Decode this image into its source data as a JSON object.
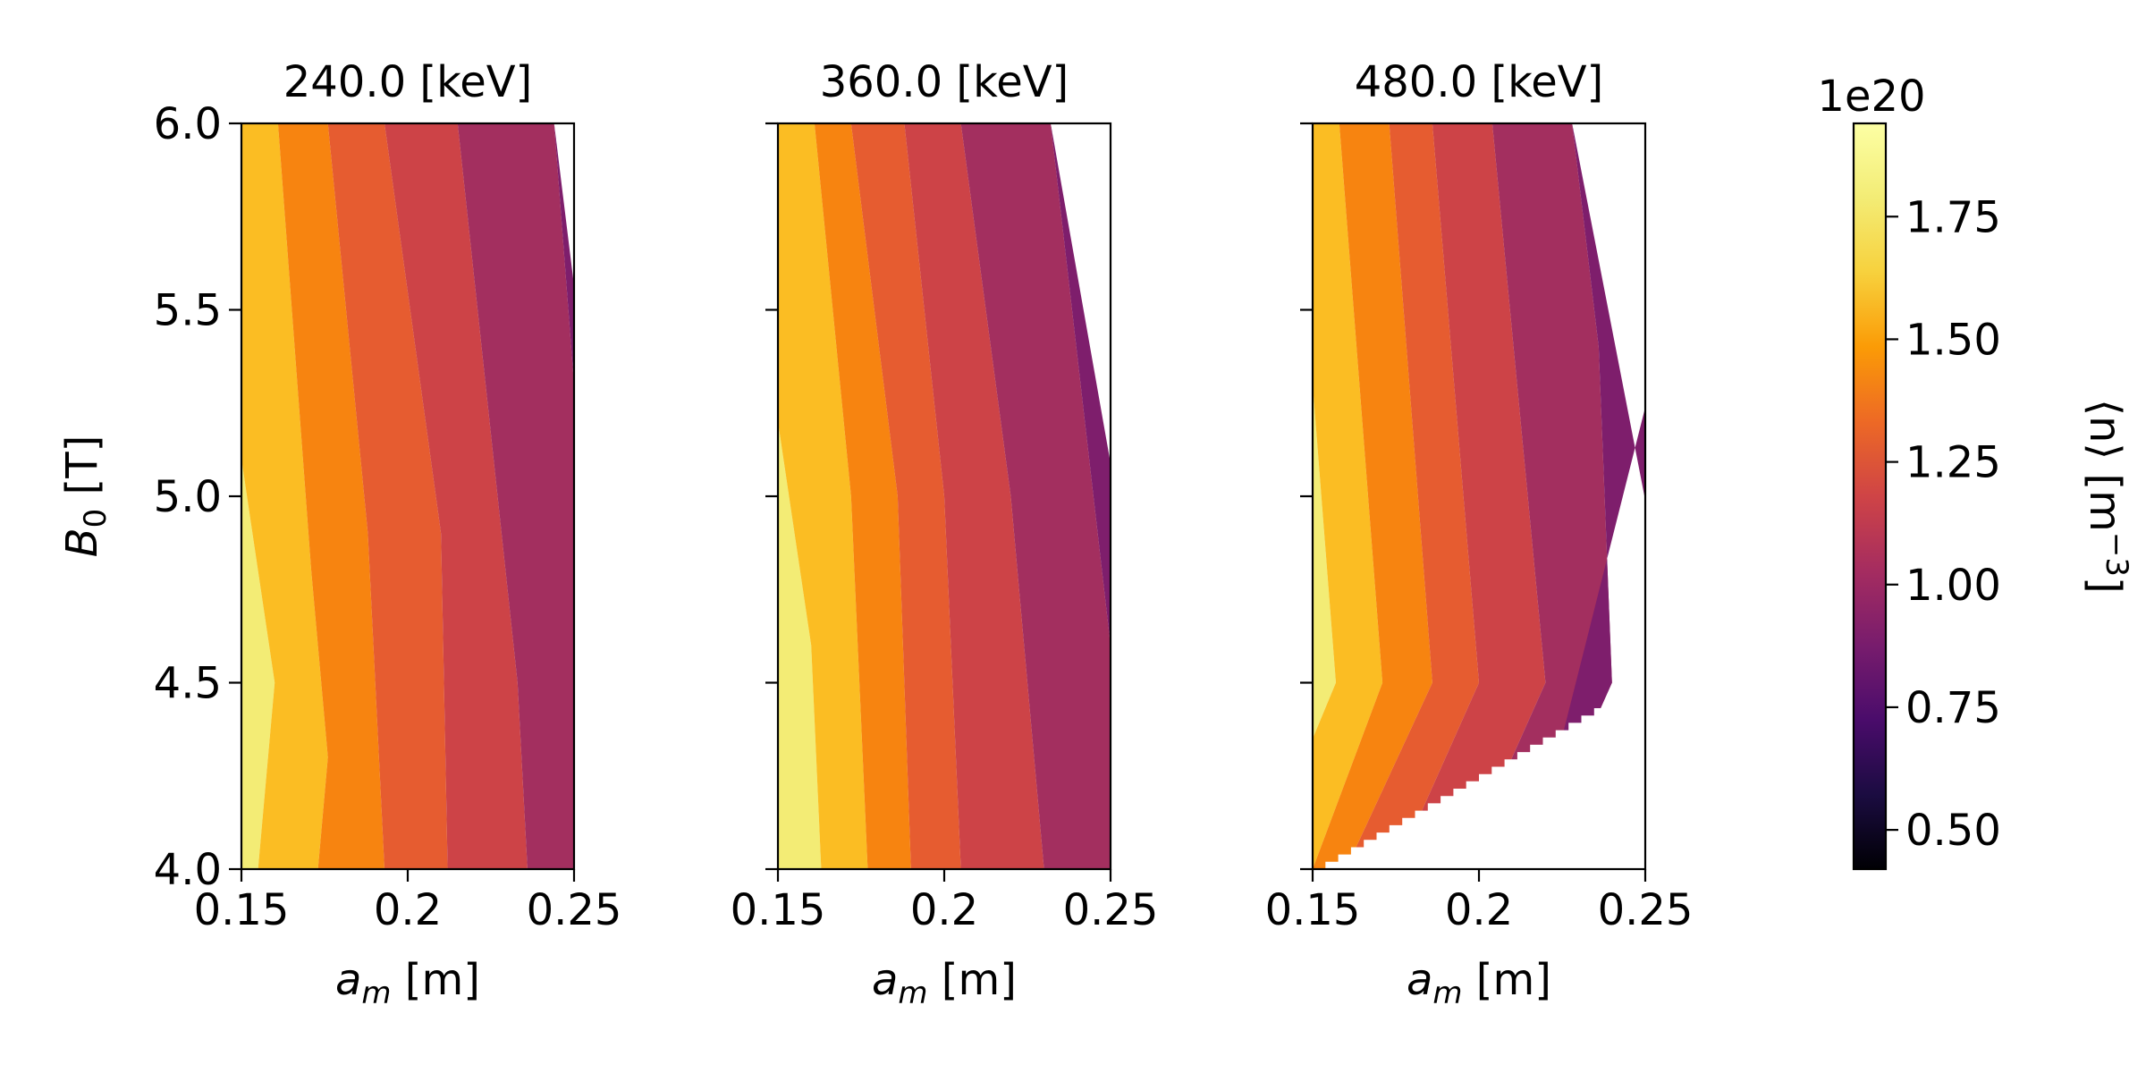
{
  "chart_data": {
    "type": "contour",
    "figure_colorbar": {
      "label": "⟨n⟩ [m",
      "label_sup": "−3",
      "label_end": "]",
      "multiplier": "1e20",
      "range": [
        0.42,
        1.94
      ],
      "ticks": [
        0.5,
        0.75,
        1.0,
        1.25,
        1.5,
        1.75
      ],
      "tick_labels": [
        "0.50",
        "0.75",
        "1.00",
        "1.25",
        "1.50",
        "1.75"
      ],
      "colormap": "inferno"
    },
    "x_axis": {
      "label_main": "a",
      "label_sub": "m",
      "label_unit": " [m]",
      "range": [
        0.15,
        0.25
      ],
      "ticks": [
        0.15,
        0.2,
        0.25
      ],
      "tick_labels": [
        "0.15",
        "0.2",
        "0.25"
      ]
    },
    "y_axis": {
      "label_main": "B",
      "label_sub": "0",
      "label_unit": " [T]",
      "range": [
        4.0,
        6.0
      ],
      "ticks": [
        4.0,
        4.5,
        5.0,
        5.5,
        6.0
      ],
      "tick_labels": [
        "4.0",
        "4.5",
        "5.0",
        "5.5",
        "6.0"
      ]
    },
    "panels": [
      {
        "title": "240.0 [keV]",
        "band_colors": [
          "#f3ec75",
          "#fbbd23",
          "#f78410",
          "#e65c30",
          "#cd4347",
          "#a32f5f",
          "#7e1e6c"
        ],
        "contours": [
          {
            "b0": [
              4.0,
              4.5,
              5.1,
              5.2,
              6.0
            ],
            "am": [
              0.155,
              0.16,
              0.15,
              0.15,
              0.15
            ]
          },
          {
            "b0": [
              4.0,
              4.3,
              4.8,
              6.0
            ],
            "am": [
              0.173,
              0.176,
              0.171,
              0.161
            ]
          },
          {
            "b0": [
              4.0,
              4.9,
              6.0
            ],
            "am": [
              0.193,
              0.188,
              0.176
            ]
          },
          {
            "b0": [
              4.0,
              4.9,
              6.0
            ],
            "am": [
              0.212,
              0.21,
              0.193
            ]
          },
          {
            "b0": [
              4.0,
              4.5,
              6.0
            ],
            "am": [
              0.236,
              0.233,
              0.215
            ]
          },
          {
            "b0": [
              4.0,
              5.3,
              6.0
            ],
            "am": [
              0.26,
              0.25,
              0.244
            ]
          }
        ]
      },
      {
        "title": "360.0 [keV]",
        "band_colors": [
          "#f3ec75",
          "#fbbd23",
          "#f78410",
          "#e65c30",
          "#cd4347",
          "#a32f5f",
          "#7e1e6c"
        ],
        "contours": [
          {
            "b0": [
              4.0,
              4.6,
              5.2,
              5.3,
              6.0
            ],
            "am": [
              0.163,
              0.16,
              0.15,
              0.15,
              0.15
            ]
          },
          {
            "b0": [
              4.0,
              5.0,
              6.0
            ],
            "am": [
              0.177,
              0.172,
              0.161
            ]
          },
          {
            "b0": [
              4.0,
              5.0,
              6.0
            ],
            "am": [
              0.19,
              0.186,
              0.172
            ]
          },
          {
            "b0": [
              4.0,
              5.0,
              6.0
            ],
            "am": [
              0.205,
              0.2,
              0.188
            ]
          },
          {
            "b0": [
              4.0,
              5.0,
              6.0
            ],
            "am": [
              0.23,
              0.22,
              0.205
            ]
          },
          {
            "b0": [
              4.0,
              4.6,
              6.0
            ],
            "am": [
              0.26,
              0.25,
              0.232
            ]
          }
        ]
      },
      {
        "title": "480.0 [keV]",
        "band_colors": [
          "#f3ec75",
          "#fbbd23",
          "#f78410",
          "#e65c30",
          "#cd4347",
          "#a32f5f",
          "#7e1e6c"
        ],
        "contours": [
          {
            "b0": [
              4.0,
              4.35,
              4.5,
              5.3,
              6.0
            ],
            "am": [
              0.15,
              0.15,
              0.157,
              0.15,
              0.15
            ]
          },
          {
            "b0": [
              4.0,
              4.5,
              6.0
            ],
            "am": [
              0.15,
              0.171,
              0.158
            ]
          },
          {
            "b0": [
              4.0,
              4.5,
              6.0
            ],
            "am": [
              0.16,
              0.186,
              0.173
            ]
          },
          {
            "b0": [
              4.0,
              4.5,
              6.0
            ],
            "am": [
              0.175,
              0.2,
              0.186
            ]
          },
          {
            "b0": [
              4.0,
              4.5,
              6.0
            ],
            "am": [
              0.195,
              0.22,
              0.204
            ]
          },
          {
            "b0": [
              4.0,
              4.5,
              5.4,
              6.0
            ],
            "am": [
              0.215,
              0.24,
              0.236,
              0.228
            ]
          }
        ],
        "valid_region_boundary": {
          "am": [
            0.15,
            0.25
          ],
          "b0": [
            4.0,
            4.51
          ]
        }
      }
    ]
  }
}
